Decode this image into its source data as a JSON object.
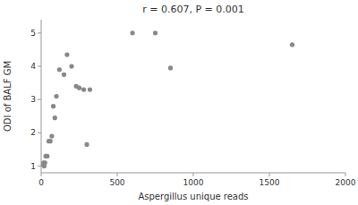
{
  "chart_data": {
    "type": "scatter",
    "title": "r = 0.607, P = 0.001",
    "xlabel": "Aspergillus unique reads",
    "ylabel": "ODI of BALF GM",
    "x": [
      10,
      15,
      20,
      25,
      30,
      40,
      50,
      60,
      70,
      80,
      90,
      100,
      120,
      150,
      170,
      200,
      230,
      250,
      280,
      300,
      320,
      600,
      750,
      850,
      1650
    ],
    "values": [
      1.05,
      1.1,
      1.0,
      1.1,
      1.3,
      1.3,
      1.75,
      1.75,
      1.9,
      2.8,
      2.45,
      3.1,
      3.9,
      3.75,
      4.35,
      4.0,
      3.4,
      3.35,
      3.3,
      1.65,
      3.3,
      5.0,
      5.0,
      3.95,
      4.65
    ],
    "xlim": [
      0,
      2000
    ],
    "ylim": [
      0.8,
      5.4
    ],
    "xticks": [
      0,
      500,
      1000,
      1500,
      2000
    ],
    "yticks": [
      1,
      2,
      3,
      4,
      5
    ],
    "color": "#888888"
  }
}
